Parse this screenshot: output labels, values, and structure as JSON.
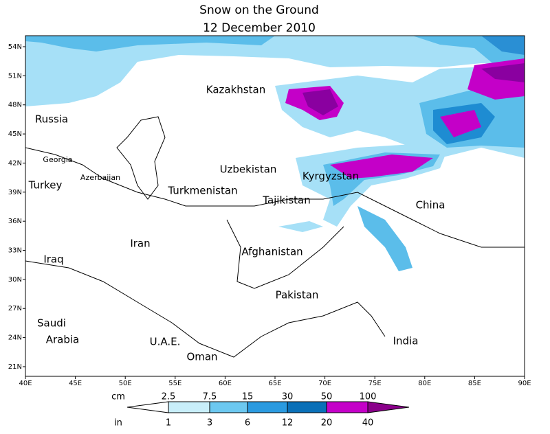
{
  "title": "Snow on the Ground",
  "subtitle": "12 December 2010",
  "map": {
    "lat_labels": [
      "54N",
      "51N",
      "48N",
      "45N",
      "42N",
      "39N",
      "36N",
      "33N",
      "30N",
      "27N",
      "24N",
      "21N"
    ],
    "lon_labels": [
      "40E",
      "45E",
      "50E",
      "55E",
      "60E",
      "65E",
      "70E",
      "75E",
      "80E",
      "85E",
      "90E"
    ],
    "countries": [
      "Kazakhstan",
      "Russia",
      "Georgia",
      "Azerbaijan",
      "Uzbekistan",
      "Kyrgyzstan",
      "Turkey",
      "Turkmenistan",
      "Tajikistan",
      "China",
      "Iran",
      "Iraq",
      "Afghanistan",
      "Pakistan",
      "Saudi",
      "Arabia",
      "U.A.E.",
      "Oman",
      "India"
    ]
  },
  "legend": {
    "cm_unit": "cm",
    "in_unit": "in",
    "cm_labels": [
      2.5,
      7.5,
      15,
      30,
      50,
      100
    ],
    "in_labels": [
      1,
      3,
      6,
      12,
      20,
      40
    ]
  }
}
